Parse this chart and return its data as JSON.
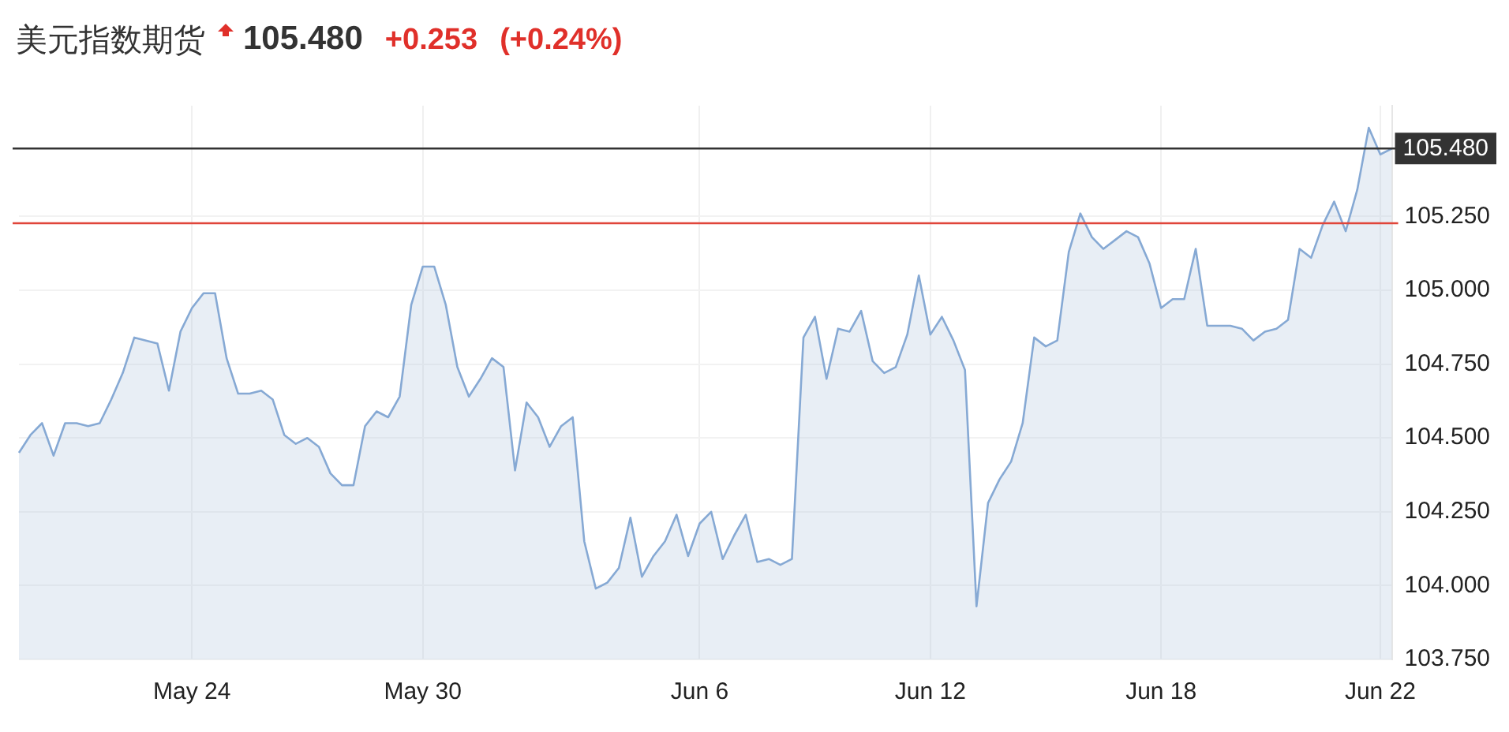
{
  "chart_data": {
    "type": "area",
    "title": "美元指数期货",
    "annotations": [
      "105.480",
      "+0.253",
      "(+0.24%)"
    ],
    "categories": [
      null,
      null,
      null,
      null,
      null,
      null,
      null,
      null,
      null,
      null,
      null,
      null,
      null,
      null,
      null,
      "May 24",
      null,
      null,
      null,
      null,
      null,
      null,
      null,
      null,
      null,
      null,
      null,
      null,
      null,
      null,
      null,
      null,
      null,
      null,
      null,
      "May 30",
      null,
      null,
      null,
      null,
      null,
      null,
      null,
      null,
      null,
      null,
      null,
      null,
      null,
      null,
      null,
      null,
      null,
      null,
      null,
      null,
      null,
      null,
      null,
      "Jun 6",
      null,
      null,
      null,
      null,
      null,
      null,
      null,
      null,
      null,
      null,
      null,
      null,
      null,
      null,
      null,
      null,
      null,
      null,
      null,
      "Jun 12",
      null,
      null,
      null,
      null,
      null,
      null,
      null,
      null,
      null,
      null,
      null,
      null,
      null,
      null,
      null,
      null,
      null,
      null,
      null,
      "Jun 18",
      null,
      null,
      null,
      null,
      null,
      null,
      null,
      null,
      null,
      null,
      null,
      null,
      null,
      null,
      null,
      null,
      null,
      null,
      "Jun 22",
      null
    ],
    "series": [
      {
        "color": "#86a9d4",
        "values": [
          104.45,
          104.51,
          104.55,
          104.44,
          104.55,
          104.55,
          104.54,
          104.55,
          104.63,
          104.72,
          104.84,
          104.83,
          104.82,
          104.66,
          104.86,
          104.94,
          104.99,
          104.99,
          104.77,
          104.65,
          104.65,
          104.66,
          104.63,
          104.51,
          104.48,
          104.5,
          104.47,
          104.38,
          104.34,
          104.34,
          104.54,
          104.59,
          104.57,
          104.64,
          104.95,
          105.08,
          105.08,
          104.95,
          104.74,
          104.64,
          104.7,
          104.77,
          104.74,
          104.39,
          104.62,
          104.57,
          104.47,
          104.54,
          104.57,
          104.15,
          103.99,
          104.01,
          104.06,
          104.23,
          104.03,
          104.1,
          104.15,
          104.24,
          104.1,
          104.21,
          104.25,
          104.09,
          104.17,
          104.24,
          104.08,
          104.09,
          104.07,
          104.09,
          104.84,
          104.91,
          104.7,
          104.87,
          104.86,
          104.93,
          104.76,
          104.72,
          104.74,
          104.85,
          105.05,
          104.85,
          104.91,
          104.83,
          104.73,
          103.93,
          104.28,
          104.36,
          104.42,
          104.55,
          104.84,
          104.81,
          104.83,
          105.13,
          105.26,
          105.18,
          105.14,
          105.17,
          105.2,
          105.18,
          105.09,
          104.94,
          104.97,
          104.97,
          105.14,
          104.88,
          104.88,
          104.88,
          104.87,
          104.83,
          104.86,
          104.87,
          104.9,
          105.14,
          105.11,
          105.22,
          105.3,
          105.2,
          105.34,
          105.55,
          105.46,
          105.48
        ]
      }
    ],
    "ylim": [
      103.75,
      105.625
    ],
    "yticks": [
      {
        "value": 103.75,
        "label": "103.750"
      },
      {
        "value": 104,
        "label": "104.000"
      },
      {
        "value": 104.25,
        "label": "104.250"
      },
      {
        "value": 104.5,
        "label": "104.500"
      },
      {
        "value": 104.75,
        "label": "104.750"
      },
      {
        "value": 105,
        "label": "105.000"
      },
      {
        "value": 105.25,
        "label": "105.250"
      }
    ],
    "ref_lines": [
      {
        "axis": "y",
        "value": 105.48,
        "label": "105.480",
        "color": "#333333"
      },
      {
        "axis": "y",
        "value": 105.227,
        "color": "#e0453a"
      }
    ],
    "grid": true,
    "legend": false
  }
}
